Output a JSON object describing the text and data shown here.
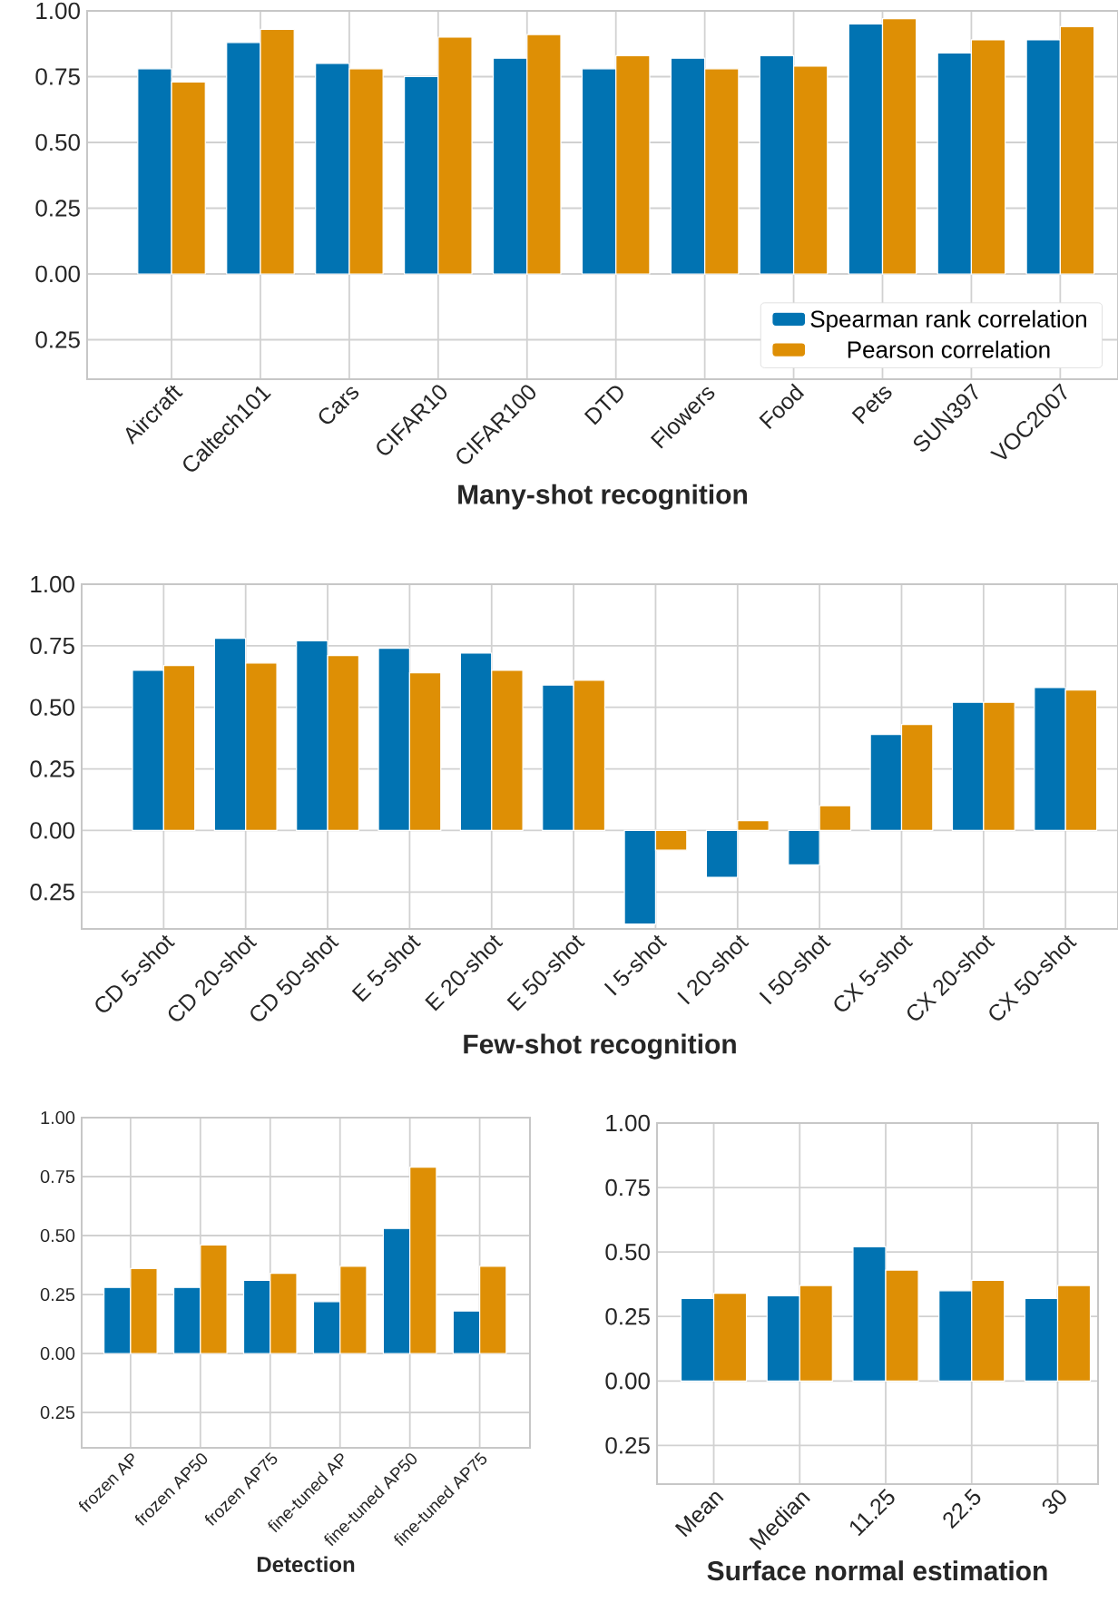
{
  "chart_data": [
    {
      "type": "bar",
      "xlabel": "Many-shot recognition",
      "categories": [
        "Aircraft",
        "Caltech101",
        "Cars",
        "CIFAR10",
        "CIFAR100",
        "DTD",
        "Flowers",
        "Food",
        "Pets",
        "SUN397",
        "VOC2007"
      ],
      "series": [
        {
          "name": "Spearman rank correlation",
          "color": "#0173b2",
          "values": [
            0.78,
            0.88,
            0.8,
            0.75,
            0.82,
            0.78,
            0.82,
            0.83,
            0.95,
            0.84,
            0.89
          ]
        },
        {
          "name": "Pearson correlation",
          "color": "#de8f05",
          "values": [
            0.73,
            0.93,
            0.78,
            0.9,
            0.91,
            0.83,
            0.78,
            0.79,
            0.97,
            0.89,
            0.94
          ]
        }
      ],
      "ylim": [
        -0.4,
        1.0
      ],
      "yticks": [
        {
          "value": -0.25,
          "label": "0.25"
        },
        {
          "value": 0,
          "label": "0.00"
        },
        {
          "value": 0.25,
          "label": "0.25"
        },
        {
          "value": 0.5,
          "label": "0.50"
        },
        {
          "value": 0.75,
          "label": "0.75"
        },
        {
          "value": 1.0,
          "label": "1.00"
        }
      ],
      "grid": true,
      "legend": "bottom right"
    },
    {
      "type": "bar",
      "xlabel": "Few-shot recognition",
      "categories": [
        "CD 5-shot",
        "CD 20-shot",
        "CD 50-shot",
        "E 5-shot",
        "E 20-shot",
        "E 50-shot",
        "I 5-shot",
        "I 20-shot",
        "I 50-shot",
        "CX 5-shot",
        "CX 20-shot",
        "CX 50-shot"
      ],
      "series": [
        {
          "color": "#0173b2",
          "values": [
            0.65,
            0.78,
            0.77,
            0.74,
            0.72,
            0.59,
            -0.38,
            -0.19,
            -0.14,
            0.39,
            0.52,
            0.58
          ]
        },
        {
          "color": "#de8f05",
          "values": [
            0.67,
            0.68,
            0.71,
            0.64,
            0.65,
            0.61,
            -0.08,
            0.04,
            0.1,
            0.43,
            0.52,
            0.57
          ]
        }
      ],
      "ylim": [
        -0.4,
        1.0
      ],
      "yticks": [
        {
          "value": -0.25,
          "label": "0.25"
        },
        {
          "value": 0,
          "label": "0.00"
        },
        {
          "value": 0.25,
          "label": "0.25"
        },
        {
          "value": 0.5,
          "label": "0.50"
        },
        {
          "value": 0.75,
          "label": "0.75"
        },
        {
          "value": 1.0,
          "label": "1.00"
        }
      ],
      "grid": true
    },
    {
      "type": "bar",
      "xlabel": "Detection",
      "categories": [
        "frozen AP",
        "frozen AP50",
        "frozen AP75",
        "fine-tuned AP",
        "fine-tuned AP50",
        "fine-tuned AP75"
      ],
      "series": [
        {
          "color": "#0173b2",
          "values": [
            0.28,
            0.28,
            0.31,
            0.22,
            0.53,
            0.18
          ]
        },
        {
          "color": "#de8f05",
          "values": [
            0.36,
            0.46,
            0.34,
            0.37,
            0.79,
            0.37
          ]
        }
      ],
      "ylim": [
        -0.4,
        1.0
      ],
      "yticks": [
        {
          "value": -0.25,
          "label": "0.25"
        },
        {
          "value": 0,
          "label": "0.00"
        },
        {
          "value": 0.25,
          "label": "0.25"
        },
        {
          "value": 0.5,
          "label": "0.50"
        },
        {
          "value": 0.75,
          "label": "0.75"
        },
        {
          "value": 1.0,
          "label": "1.00"
        }
      ],
      "grid": true
    },
    {
      "type": "bar",
      "xlabel": "Surface normal estimation",
      "categories": [
        "Mean",
        "Median",
        "11.25",
        "22.5",
        "30"
      ],
      "series": [
        {
          "color": "#0173b2",
          "values": [
            0.32,
            0.33,
            0.52,
            0.35,
            0.32
          ]
        },
        {
          "color": "#de8f05",
          "values": [
            0.34,
            0.37,
            0.43,
            0.39,
            0.37
          ]
        }
      ],
      "ylim": [
        -0.4,
        1.0
      ],
      "yticks": [
        {
          "value": -0.25,
          "label": "0.25"
        },
        {
          "value": 0,
          "label": "0.00"
        },
        {
          "value": 0.25,
          "label": "0.25"
        },
        {
          "value": 0.5,
          "label": "0.50"
        },
        {
          "value": 0.75,
          "label": "0.75"
        },
        {
          "value": 1.0,
          "label": "1.00"
        }
      ],
      "grid": true
    }
  ]
}
